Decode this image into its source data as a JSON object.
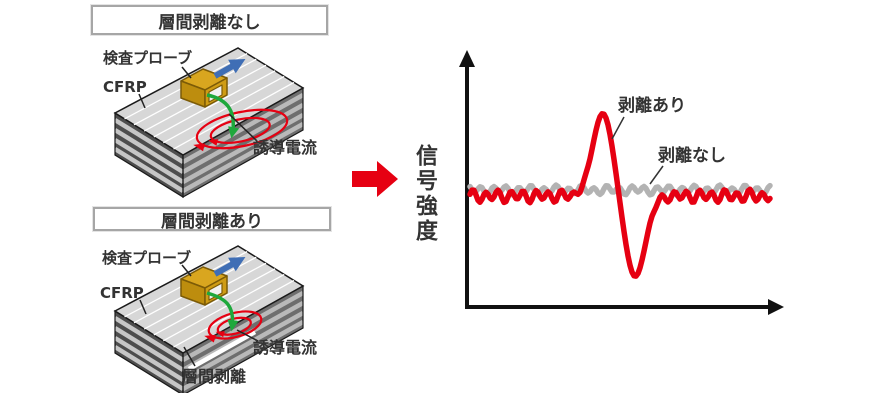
{
  "panels": [
    {
      "title": "層間剥離なし",
      "labels": {
        "probe": "検査プローブ",
        "material": "CFRP",
        "eddy_current": "誘導電流"
      }
    },
    {
      "title": "層間剥離あり",
      "labels": {
        "probe": "検査プローブ",
        "material": "CFRP",
        "eddy_current": "誘導電流",
        "delamination": "層間剥離"
      }
    }
  ],
  "chart": {
    "ylabel": "信号強度",
    "xlabel": ""
  },
  "chart_data": {
    "type": "line",
    "title": "",
    "ylabel": "信号強度",
    "xlabel": "",
    "x_range": [
      0,
      300
    ],
    "grid": false,
    "legend_style": "inline-annotations-with-leader-lines",
    "series": [
      {
        "name": "剥離あり",
        "color": "#e60012",
        "baseline": 0,
        "noise": {
          "amp1": 5,
          "freq1": 0.5,
          "phase1": 0,
          "amp2": 1.8,
          "freq2": 0.27,
          "phase2": 1.3
        },
        "feature": {
          "peak_x": 133,
          "peak_height": 83,
          "trough_x": 165,
          "trough_depth": 81,
          "sigma": 14.5,
          "noise_suppression_sigma": 24
        }
      },
      {
        "name": "剥離なし",
        "color": "#b3b3b3",
        "baseline": 6,
        "noise": {
          "amp1": 3.5,
          "freq1": 0.5,
          "phase1": 2.4,
          "amp2": 1.5,
          "freq2": 0.23,
          "phase2": 0.8
        },
        "feature": null
      }
    ]
  },
  "colors": {
    "accent_red": "#e60012",
    "signal_gray": "#b3b3b3",
    "probe_gold": "#d9a61f",
    "arrow_blue": "#3f6eb5",
    "arrow_green": "#1ea83c",
    "axis_black": "#111111",
    "text": "#333333"
  }
}
